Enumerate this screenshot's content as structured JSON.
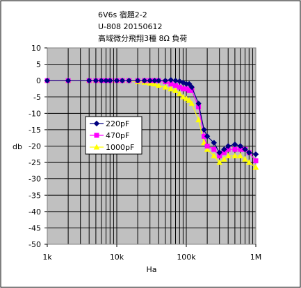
{
  "chart_data": {
    "type": "line",
    "title_lines": [
      "6V6s 宿題2-2",
      "U-808 20150612",
      "高域微分飛翔3種 8Ω 負荷"
    ],
    "xlabel": "Ha",
    "ylabel": "db",
    "x_scale": "log",
    "xlim": [
      1000,
      1000000
    ],
    "ylim": [
      -50,
      10
    ],
    "y_ticks": [
      10,
      5,
      0,
      -5,
      -10,
      -15,
      -20,
      -25,
      -30,
      -35,
      -40,
      -45,
      -50
    ],
    "y_tick_labels": [
      "10",
      "5",
      "0",
      "-5",
      "-10",
      "-15",
      "-20",
      "-25",
      "-30",
      "-35",
      "-40",
      "-45",
      "-50"
    ],
    "x_ticks": [
      1000,
      10000,
      100000,
      1000000
    ],
    "x_tick_labels": [
      "1k",
      "10k",
      "100k",
      "1M"
    ],
    "grid": true,
    "plot_background": "#c0c0c0",
    "legend_position": "center-left",
    "series": [
      {
        "name": "220pF",
        "color": "#000080",
        "marker": "diamond",
        "x": [
          1000,
          2000,
          4000,
          5000,
          6000,
          7000,
          8000,
          10000,
          12000,
          15000,
          20000,
          25000,
          30000,
          35000,
          40000,
          50000,
          60000,
          70000,
          80000,
          90000,
          100000,
          110000,
          120000,
          150000,
          180000,
          200000,
          250000,
          300000,
          350000,
          400000,
          500000,
          600000,
          700000,
          800000,
          1000000
        ],
        "y": [
          0,
          0,
          0,
          0,
          0,
          0,
          0,
          0,
          0,
          0,
          0,
          0,
          0,
          0,
          0,
          0,
          0.2,
          0,
          -0.2,
          -0.6,
          -1,
          -1,
          -2,
          -7,
          -15,
          -17,
          -19,
          -22,
          -21,
          -20,
          -19.5,
          -20,
          -21,
          -22,
          -22.5
        ]
      },
      {
        "name": "470pF",
        "color": "#ff00ff",
        "marker": "square",
        "x": [
          1000,
          2000,
          4000,
          5000,
          6000,
          7000,
          8000,
          10000,
          12000,
          15000,
          20000,
          25000,
          30000,
          35000,
          40000,
          50000,
          60000,
          70000,
          80000,
          90000,
          100000,
          110000,
          120000,
          150000,
          180000,
          200000,
          250000,
          300000,
          350000,
          400000,
          500000,
          600000,
          700000,
          800000,
          1000000
        ],
        "y": [
          0,
          0,
          0,
          0,
          0,
          0,
          0,
          0,
          0,
          0,
          0,
          0,
          0,
          0,
          0,
          -0.3,
          -1,
          -1.5,
          -2,
          -2.5,
          -2.5,
          -3,
          -3,
          -8,
          -17,
          -20,
          -21,
          -23,
          -22,
          -21,
          -21,
          -21,
          -21,
          -22,
          -24.5
        ]
      },
      {
        "name": "1000pF",
        "color": "#ffff00",
        "marker": "triangle",
        "x": [
          1000,
          2000,
          4000,
          5000,
          6000,
          7000,
          8000,
          10000,
          12000,
          15000,
          20000,
          25000,
          30000,
          35000,
          40000,
          50000,
          60000,
          70000,
          80000,
          90000,
          100000,
          110000,
          120000,
          150000,
          180000,
          200000,
          250000,
          300000,
          350000,
          400000,
          500000,
          600000,
          700000,
          800000,
          1000000
        ],
        "y": [
          0,
          0,
          0,
          0,
          0,
          0,
          0,
          0,
          0,
          0,
          -0.3,
          -0.5,
          -0.8,
          -1,
          -1.5,
          -2,
          -2.5,
          -3,
          -4,
          -5,
          -5.5,
          -6,
          -7,
          -12,
          -19,
          -21,
          -23,
          -25,
          -24,
          -23,
          -23,
          -23,
          -24,
          -25,
          -26.5
        ]
      }
    ]
  }
}
